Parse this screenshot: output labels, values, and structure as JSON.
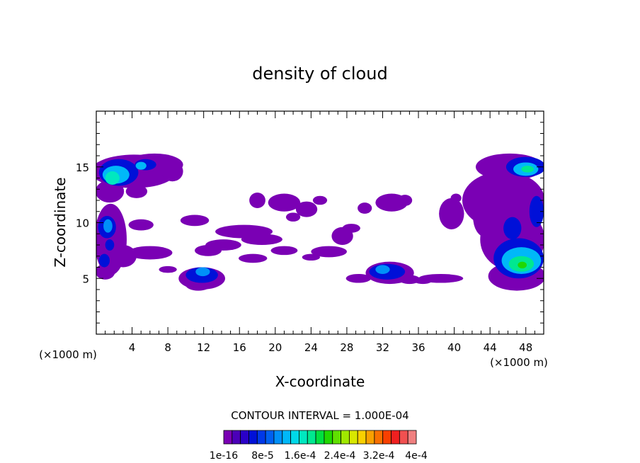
{
  "chart_data": {
    "type": "heatmap",
    "title": "density of cloud",
    "xlabel": "X-coordinate",
    "ylabel": "Z-coordinate",
    "x_unit": "(×1000 m)",
    "xlim": [
      0,
      50
    ],
    "ylim": [
      0,
      20
    ],
    "x_ticks": [
      4,
      8,
      12,
      16,
      20,
      24,
      28,
      32,
      36,
      40,
      44,
      48
    ],
    "y_ticks": [
      5,
      10,
      15
    ],
    "contour_interval_text": "CONTOUR INTERVAL = 1.000E-04",
    "colorbar": {
      "colors": [
        "#7a00b4",
        "#4b00b8",
        "#2a00c8",
        "#0010d8",
        "#0038e8",
        "#0060f0",
        "#0090f8",
        "#00b8f8",
        "#00d8e8",
        "#00e8c0",
        "#00e890",
        "#00e040",
        "#20d800",
        "#60e000",
        "#a0e800",
        "#d8e800",
        "#f8d000",
        "#f8a000",
        "#f87000",
        "#f84000",
        "#f02020",
        "#f05050",
        "#f08080"
      ],
      "labels": [
        "1e-16",
        "8e-5",
        "1.6e-4",
        "2.4e-4",
        "3.2e-4",
        "4e-4"
      ]
    },
    "cloud_regions": [
      {
        "x": [
          0,
          9
        ],
        "z": [
          12.5,
          16.2
        ],
        "peak_level": "1.6e-4"
      },
      {
        "x": [
          0,
          4
        ],
        "z": [
          5,
          11
        ],
        "peak_level": "8e-5"
      },
      {
        "x": [
          9,
          14
        ],
        "z": [
          4,
          6.5
        ],
        "peak_level": "8e-5"
      },
      {
        "x": [
          30,
          36
        ],
        "z": [
          4.5,
          6.5
        ],
        "peak_level": "8e-5"
      },
      {
        "x": [
          40,
          50
        ],
        "z": [
          4,
          16.2
        ],
        "peak_level": "1.6e-4"
      },
      {
        "x": [
          13,
          20
        ],
        "z": [
          8.2,
          10
        ],
        "peak_level": "1e-16"
      },
      {
        "x": [
          24,
          28
        ],
        "z": [
          6.5,
          9.5
        ],
        "peak_level": "1e-16"
      },
      {
        "x": [
          28,
          35
        ],
        "z": [
          11,
          12.5
        ],
        "peak_level": "1e-16"
      }
    ]
  }
}
